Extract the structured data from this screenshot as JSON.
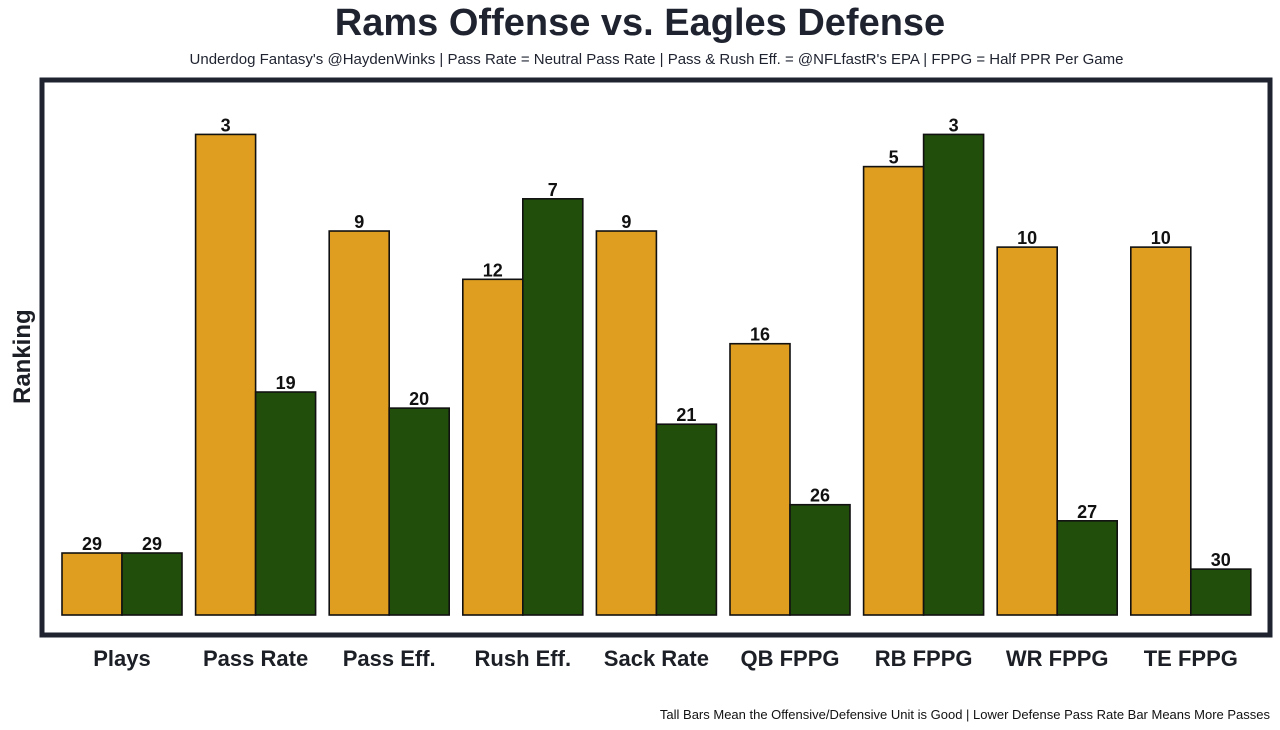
{
  "chart_data": {
    "type": "bar",
    "title": "Rams Offense vs. Eagles Defense",
    "subtitle": "Underdog Fantasy's @HaydenWinks | Pass Rate = Neutral Pass Rate | Pass & Rush Eff. = @NFLfastR's EPA | FPPG = Half PPR Per Game",
    "footer": "Tall Bars Mean the Offensive/Defensive Unit is Good | Lower Defense Pass Rate Bar Means More Passes",
    "xlabel": "",
    "ylabel": "Ranking",
    "categories": [
      "Plays",
      "Pass Rate",
      "Pass Eff.",
      "Rush Eff.",
      "Sack Rate",
      "QB FPPG",
      "RB FPPG",
      "WR FPPG",
      "TE FPPG"
    ],
    "series": [
      {
        "name": "Rams Offense",
        "color": "#E09E20",
        "values": [
          29,
          3,
          9,
          12,
          9,
          16,
          5,
          10,
          10
        ]
      },
      {
        "name": "Eagles Defense",
        "color": "#214E0B",
        "values": [
          29,
          19,
          20,
          7,
          21,
          26,
          3,
          27,
          30
        ]
      }
    ],
    "grid": false
  }
}
